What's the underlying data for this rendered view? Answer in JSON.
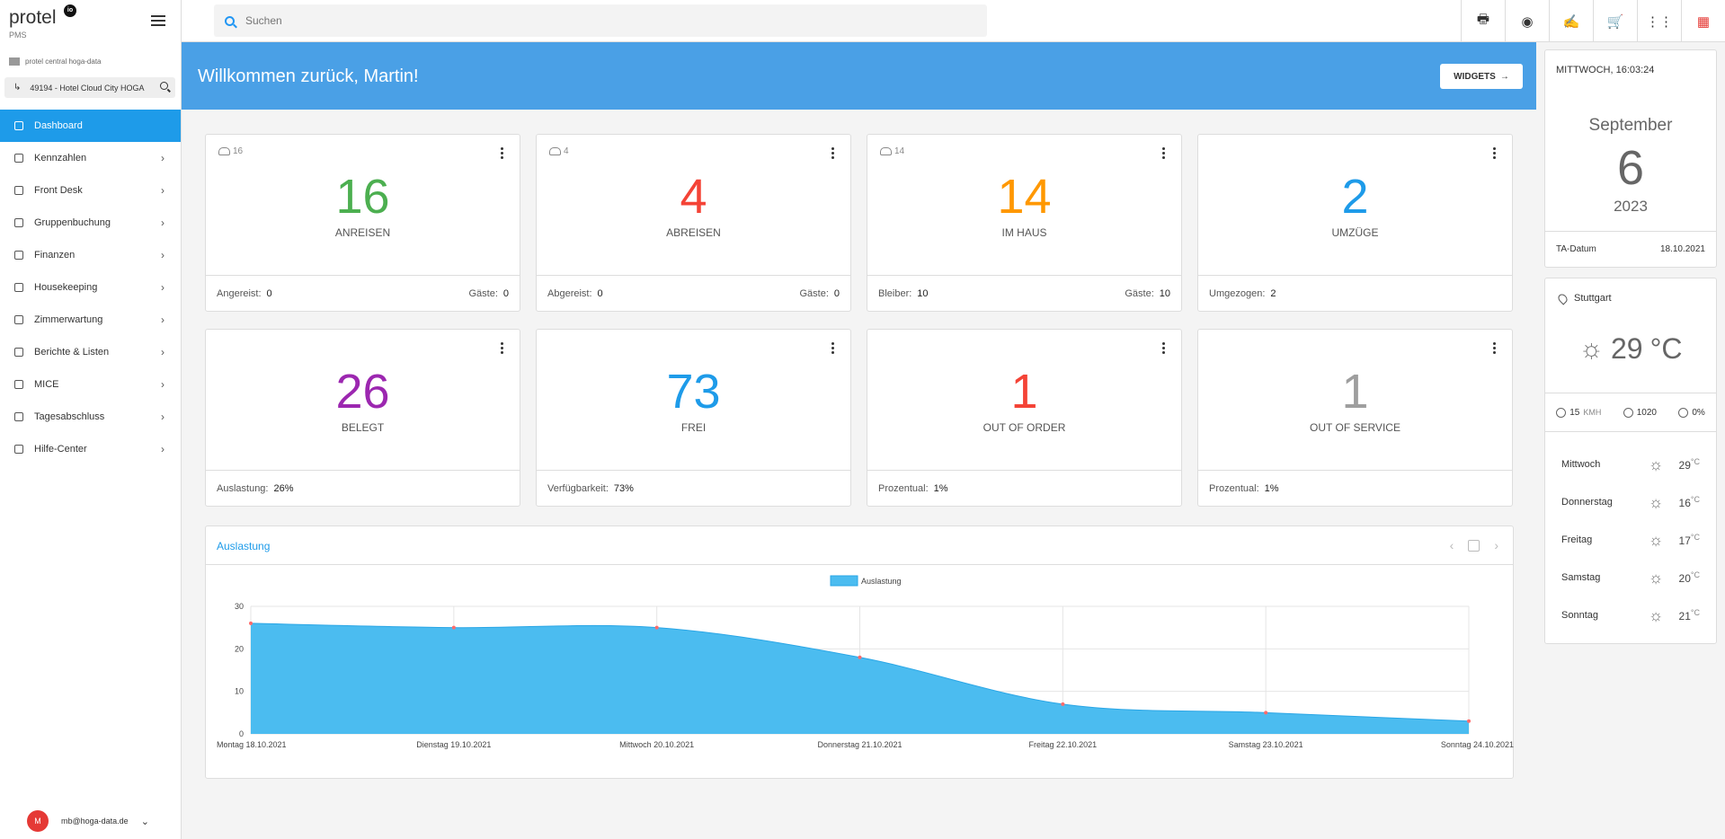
{
  "brand": {
    "name": "protel",
    "logo_text": "io",
    "sub": "PMS"
  },
  "org": {
    "name": "protel central hoga-data",
    "hotel": "49194 - Hotel Cloud City HOGA"
  },
  "nav": [
    {
      "label": "Dashboard",
      "icon": "home-icon",
      "active": true
    },
    {
      "label": "Kennzahlen",
      "icon": "grid-icon"
    },
    {
      "label": "Front Desk",
      "icon": "desk-icon"
    },
    {
      "label": "Gruppenbuchung",
      "icon": "group-icon"
    },
    {
      "label": "Finanzen",
      "icon": "finance-icon"
    },
    {
      "label": "Housekeeping",
      "icon": "broom-icon"
    },
    {
      "label": "Zimmerwartung",
      "icon": "wrench-icon"
    },
    {
      "label": "Berichte & Listen",
      "icon": "report-icon"
    },
    {
      "label": "MICE",
      "icon": "mice-icon"
    },
    {
      "label": "Tagesabschluss",
      "icon": "hourglass-icon"
    },
    {
      "label": "Hilfe-Center",
      "icon": "help-icon"
    }
  ],
  "user": {
    "initial": "M",
    "email": "mb@hoga-data.de"
  },
  "search": {
    "placeholder": "Suchen"
  },
  "banner": {
    "title": "Willkommen zurück, Martin!",
    "button": "WIDGETS"
  },
  "cards": [
    {
      "count": "16",
      "value": "16",
      "label": "ANREISEN",
      "color": "#4caf50",
      "foot_left_label": "Angereist:",
      "foot_left_value": "0",
      "foot_right_label": "Gäste:",
      "foot_right_value": "0"
    },
    {
      "count": "4",
      "value": "4",
      "label": "ABREISEN",
      "color": "#f44336",
      "foot_left_label": "Abgereist:",
      "foot_left_value": "0",
      "foot_right_label": "Gäste:",
      "foot_right_value": "0"
    },
    {
      "count": "14",
      "value": "14",
      "label": "IM HAUS",
      "color": "#ff9800",
      "foot_left_label": "Bleiber:",
      "foot_left_value": "10",
      "foot_right_label": "Gäste:",
      "foot_right_value": "10"
    },
    {
      "count": "",
      "value": "2",
      "label": "UMZÜGE",
      "color": "#1e9be9",
      "foot_left_label": "Umgezogen:",
      "foot_left_value": "2",
      "foot_right_label": "",
      "foot_right_value": ""
    },
    {
      "count": "",
      "value": "26",
      "label": "BELEGT",
      "color": "#9c27b0",
      "foot_left_label": "Auslastung:",
      "foot_left_value": "26%",
      "foot_right_label": "",
      "foot_right_value": ""
    },
    {
      "count": "",
      "value": "73",
      "label": "FREI",
      "color": "#1e9be9",
      "foot_left_label": "Verfügbarkeit:",
      "foot_left_value": "73%",
      "foot_right_label": "",
      "foot_right_value": ""
    },
    {
      "count": "",
      "value": "1",
      "label": "OUT OF ORDER",
      "color": "#f44336",
      "foot_left_label": "Prozentual:",
      "foot_left_value": "1%",
      "foot_right_label": "",
      "foot_right_value": ""
    },
    {
      "count": "",
      "value": "1",
      "label": "OUT OF SERVICE",
      "color": "#9e9e9e",
      "foot_left_label": "Prozentual:",
      "foot_left_value": "1%",
      "foot_right_label": "",
      "foot_right_value": ""
    }
  ],
  "chart_panel": {
    "title": "Auslastung"
  },
  "chart_data": {
    "type": "area",
    "categories": [
      "Montag 18.10.2021",
      "Dienstag 19.10.2021",
      "Mittwoch 20.10.2021",
      "Donnerstag 21.10.2021",
      "Freitag 22.10.2021",
      "Samstag 23.10.2021",
      "Sonntag 24.10.2021"
    ],
    "series": [
      {
        "name": "Auslastung",
        "values": [
          26,
          25,
          25,
          18,
          7,
          5,
          3
        ]
      }
    ],
    "ylim": [
      0,
      30
    ],
    "yticks": [
      0,
      10,
      20,
      30
    ],
    "legend": "top-center",
    "grid": true,
    "fill_color": "#4bbcf0",
    "point_color": "#ff6b6b"
  },
  "date_widget": {
    "header": "MITTWOCH, 16:03:24",
    "month": "September",
    "day": "6",
    "year": "2023",
    "ta_label": "TA-Datum",
    "ta_value": "18.10.2021"
  },
  "weather": {
    "city": "Stuttgart",
    "temp": "29",
    "unit": "°C",
    "wind": "15",
    "wind_unit": "KMH",
    "pressure": "1020",
    "rain": "0%",
    "forecast": [
      {
        "day": "Mittwoch",
        "temp": "29",
        "unit": "°C"
      },
      {
        "day": "Donnerstag",
        "temp": "16",
        "unit": "°C"
      },
      {
        "day": "Freitag",
        "temp": "17",
        "unit": "°C"
      },
      {
        "day": "Samstag",
        "temp": "20",
        "unit": "°C"
      },
      {
        "day": "Sonntag",
        "temp": "21",
        "unit": "°C"
      }
    ]
  }
}
